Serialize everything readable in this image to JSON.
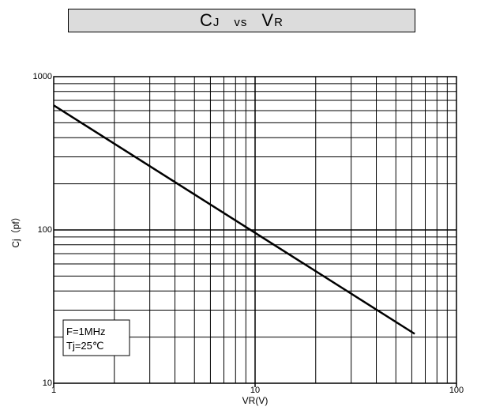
{
  "chart_data": {
    "type": "line",
    "title": {
      "c": "C",
      "j": "J",
      "vs": "vs",
      "v": "V",
      "r": "R"
    },
    "xlabel": "VR(V)",
    "ylabel": "Cj（pf）",
    "xscale": "log",
    "yscale": "log",
    "xlim": [
      1,
      100
    ],
    "ylim": [
      10,
      1000
    ],
    "x_ticks": [
      {
        "value": 1,
        "label": "1"
      },
      {
        "value": 10,
        "label": "10"
      },
      {
        "value": 100,
        "label": "100"
      }
    ],
    "y_ticks": [
      {
        "value": 10,
        "label": "10"
      },
      {
        "value": 100,
        "label": "100"
      },
      {
        "value": 1000,
        "label": "1000"
      }
    ],
    "grid": true,
    "series": [
      {
        "x": [
          1,
          62
        ],
        "y": [
          650,
          21
        ]
      }
    ],
    "annotation": [
      "F=1MHz",
      "Tj=25℃"
    ]
  }
}
